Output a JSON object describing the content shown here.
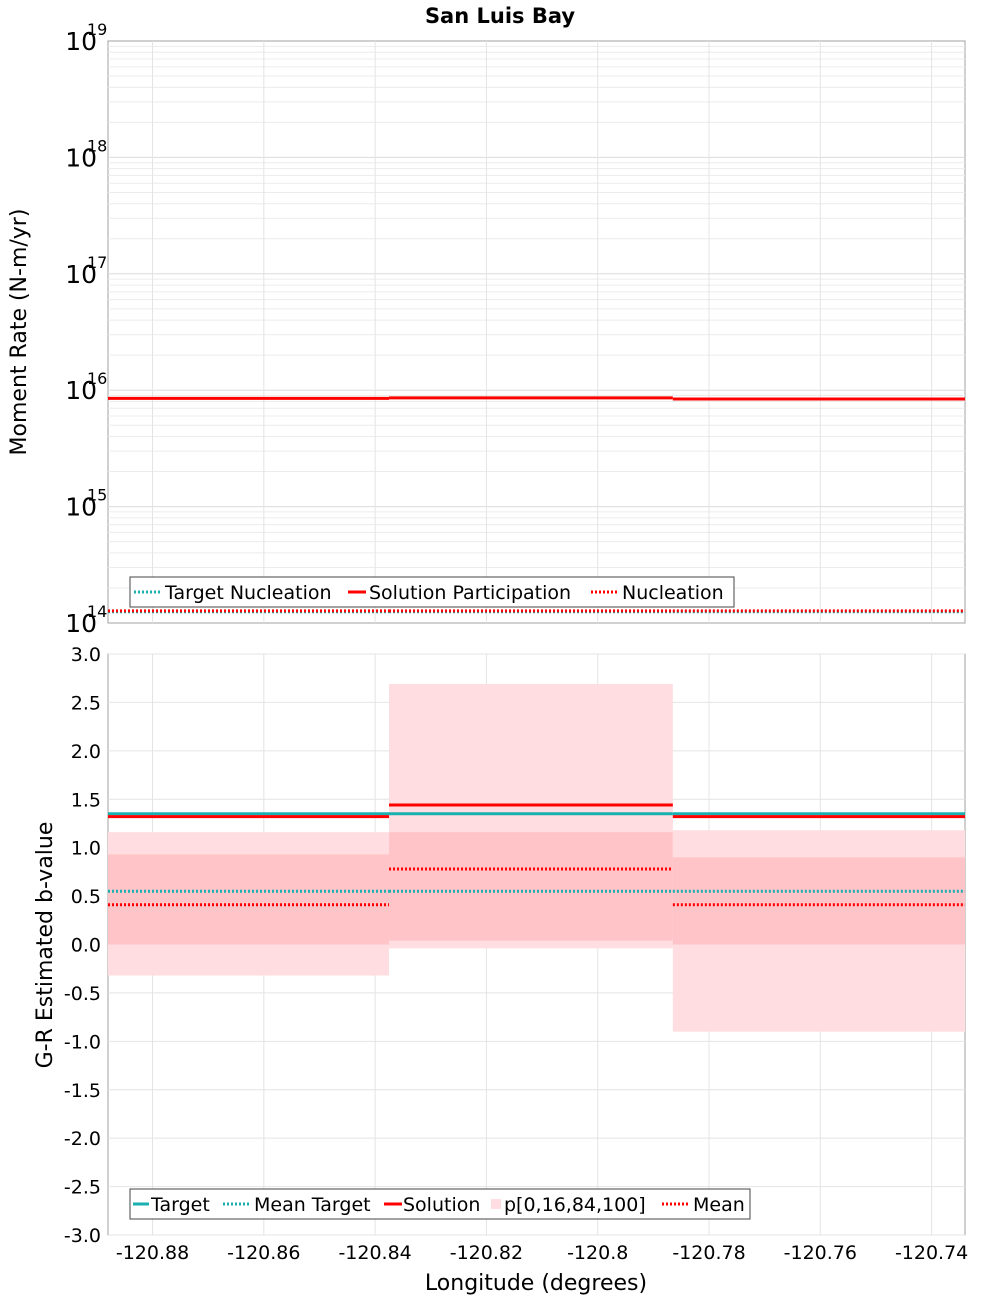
{
  "chart_data": [
    {
      "type": "line",
      "title": "San Luis Bay",
      "ylabel": "Moment Rate (N-m/yr)",
      "yscale": "log",
      "ylim": [
        100000000000000.0,
        1e+19
      ],
      "xlim": [
        -120.888,
        -120.734
      ],
      "y_tick_bases": [
        "10",
        "10",
        "10",
        "10",
        "10",
        "10"
      ],
      "y_tick_exponents": [
        "14",
        "15",
        "16",
        "17",
        "18",
        "19"
      ],
      "y_tick_values": [
        100000000000000.0,
        1000000000000000.0,
        1e+16,
        1e+17,
        1e+18,
        1e+19
      ],
      "segments": [
        {
          "x0": -120.888,
          "x1": -120.8375
        },
        {
          "x0": -120.8375,
          "x1": -120.7865
        },
        {
          "x0": -120.7865,
          "x1": -120.734
        }
      ],
      "series": [
        {
          "name": "Target Nucleation",
          "style": "dotted",
          "color": "#1ab0b0",
          "values": [
            125000000000000.0,
            125000000000000.0,
            125000000000000.0
          ]
        },
        {
          "name": "Solution Participation",
          "style": "solid",
          "color": "#ff0000",
          "values": [
            8500000000000000.0,
            8600000000000000.0,
            8400000000000000.0
          ]
        },
        {
          "name": "Nucleation",
          "style": "dotted",
          "color": "#ff0000",
          "values": [
            127000000000000.0,
            127000000000000.0,
            127000000000000.0
          ]
        }
      ],
      "legend": {
        "position": "bottom-left",
        "entries": [
          "Target Nucleation",
          "Solution Participation",
          "Nucleation"
        ]
      }
    },
    {
      "type": "line",
      "xlabel": "Longitude (degrees)",
      "ylabel": "G-R Estimated b-value",
      "ylim": [
        -3.0,
        3.0
      ],
      "xlim": [
        -120.888,
        -120.734
      ],
      "y_ticks": [
        "-3.0",
        "-2.5",
        "-2.0",
        "-1.5",
        "-1.0",
        "-0.5",
        "0.0",
        "0.5",
        "1.0",
        "1.5",
        "2.0",
        "2.5",
        "3.0"
      ],
      "x_ticks": [
        "-120.88",
        "-120.86",
        "-120.84",
        "-120.82",
        "-120.8",
        "-120.78",
        "-120.76",
        "-120.74"
      ],
      "segments": [
        {
          "x0": -120.888,
          "x1": -120.8375
        },
        {
          "x0": -120.8375,
          "x1": -120.7865
        },
        {
          "x0": -120.7865,
          "x1": -120.734
        }
      ],
      "series": [
        {
          "name": "Target",
          "style": "solid",
          "color": "#1ab0b0",
          "values": [
            1.35,
            1.35,
            1.35
          ]
        },
        {
          "name": "Mean Target",
          "style": "dotted",
          "color": "#1ab0b0",
          "values": [
            0.55,
            0.55,
            0.55
          ]
        },
        {
          "name": "Solution",
          "style": "solid",
          "color": "#ff0000",
          "values": [
            1.32,
            1.44,
            1.32
          ]
        },
        {
          "name": "Mean",
          "style": "dotted",
          "color": "#ff0000",
          "values": [
            0.41,
            0.78,
            0.41
          ]
        }
      ],
      "bands": {
        "name": "p[0,16,84,100]",
        "p0": [
          -0.32,
          -0.04,
          -0.9
        ],
        "p16": [
          0.0,
          0.04,
          0.0
        ],
        "p84": [
          0.93,
          1.16,
          0.9
        ],
        "p100": [
          1.16,
          2.69,
          1.18
        ]
      },
      "legend": {
        "position": "bottom-left",
        "entries": [
          "Target",
          "Mean Target",
          "Solution",
          "p[0,16,84,100]",
          "Mean"
        ]
      }
    }
  ]
}
